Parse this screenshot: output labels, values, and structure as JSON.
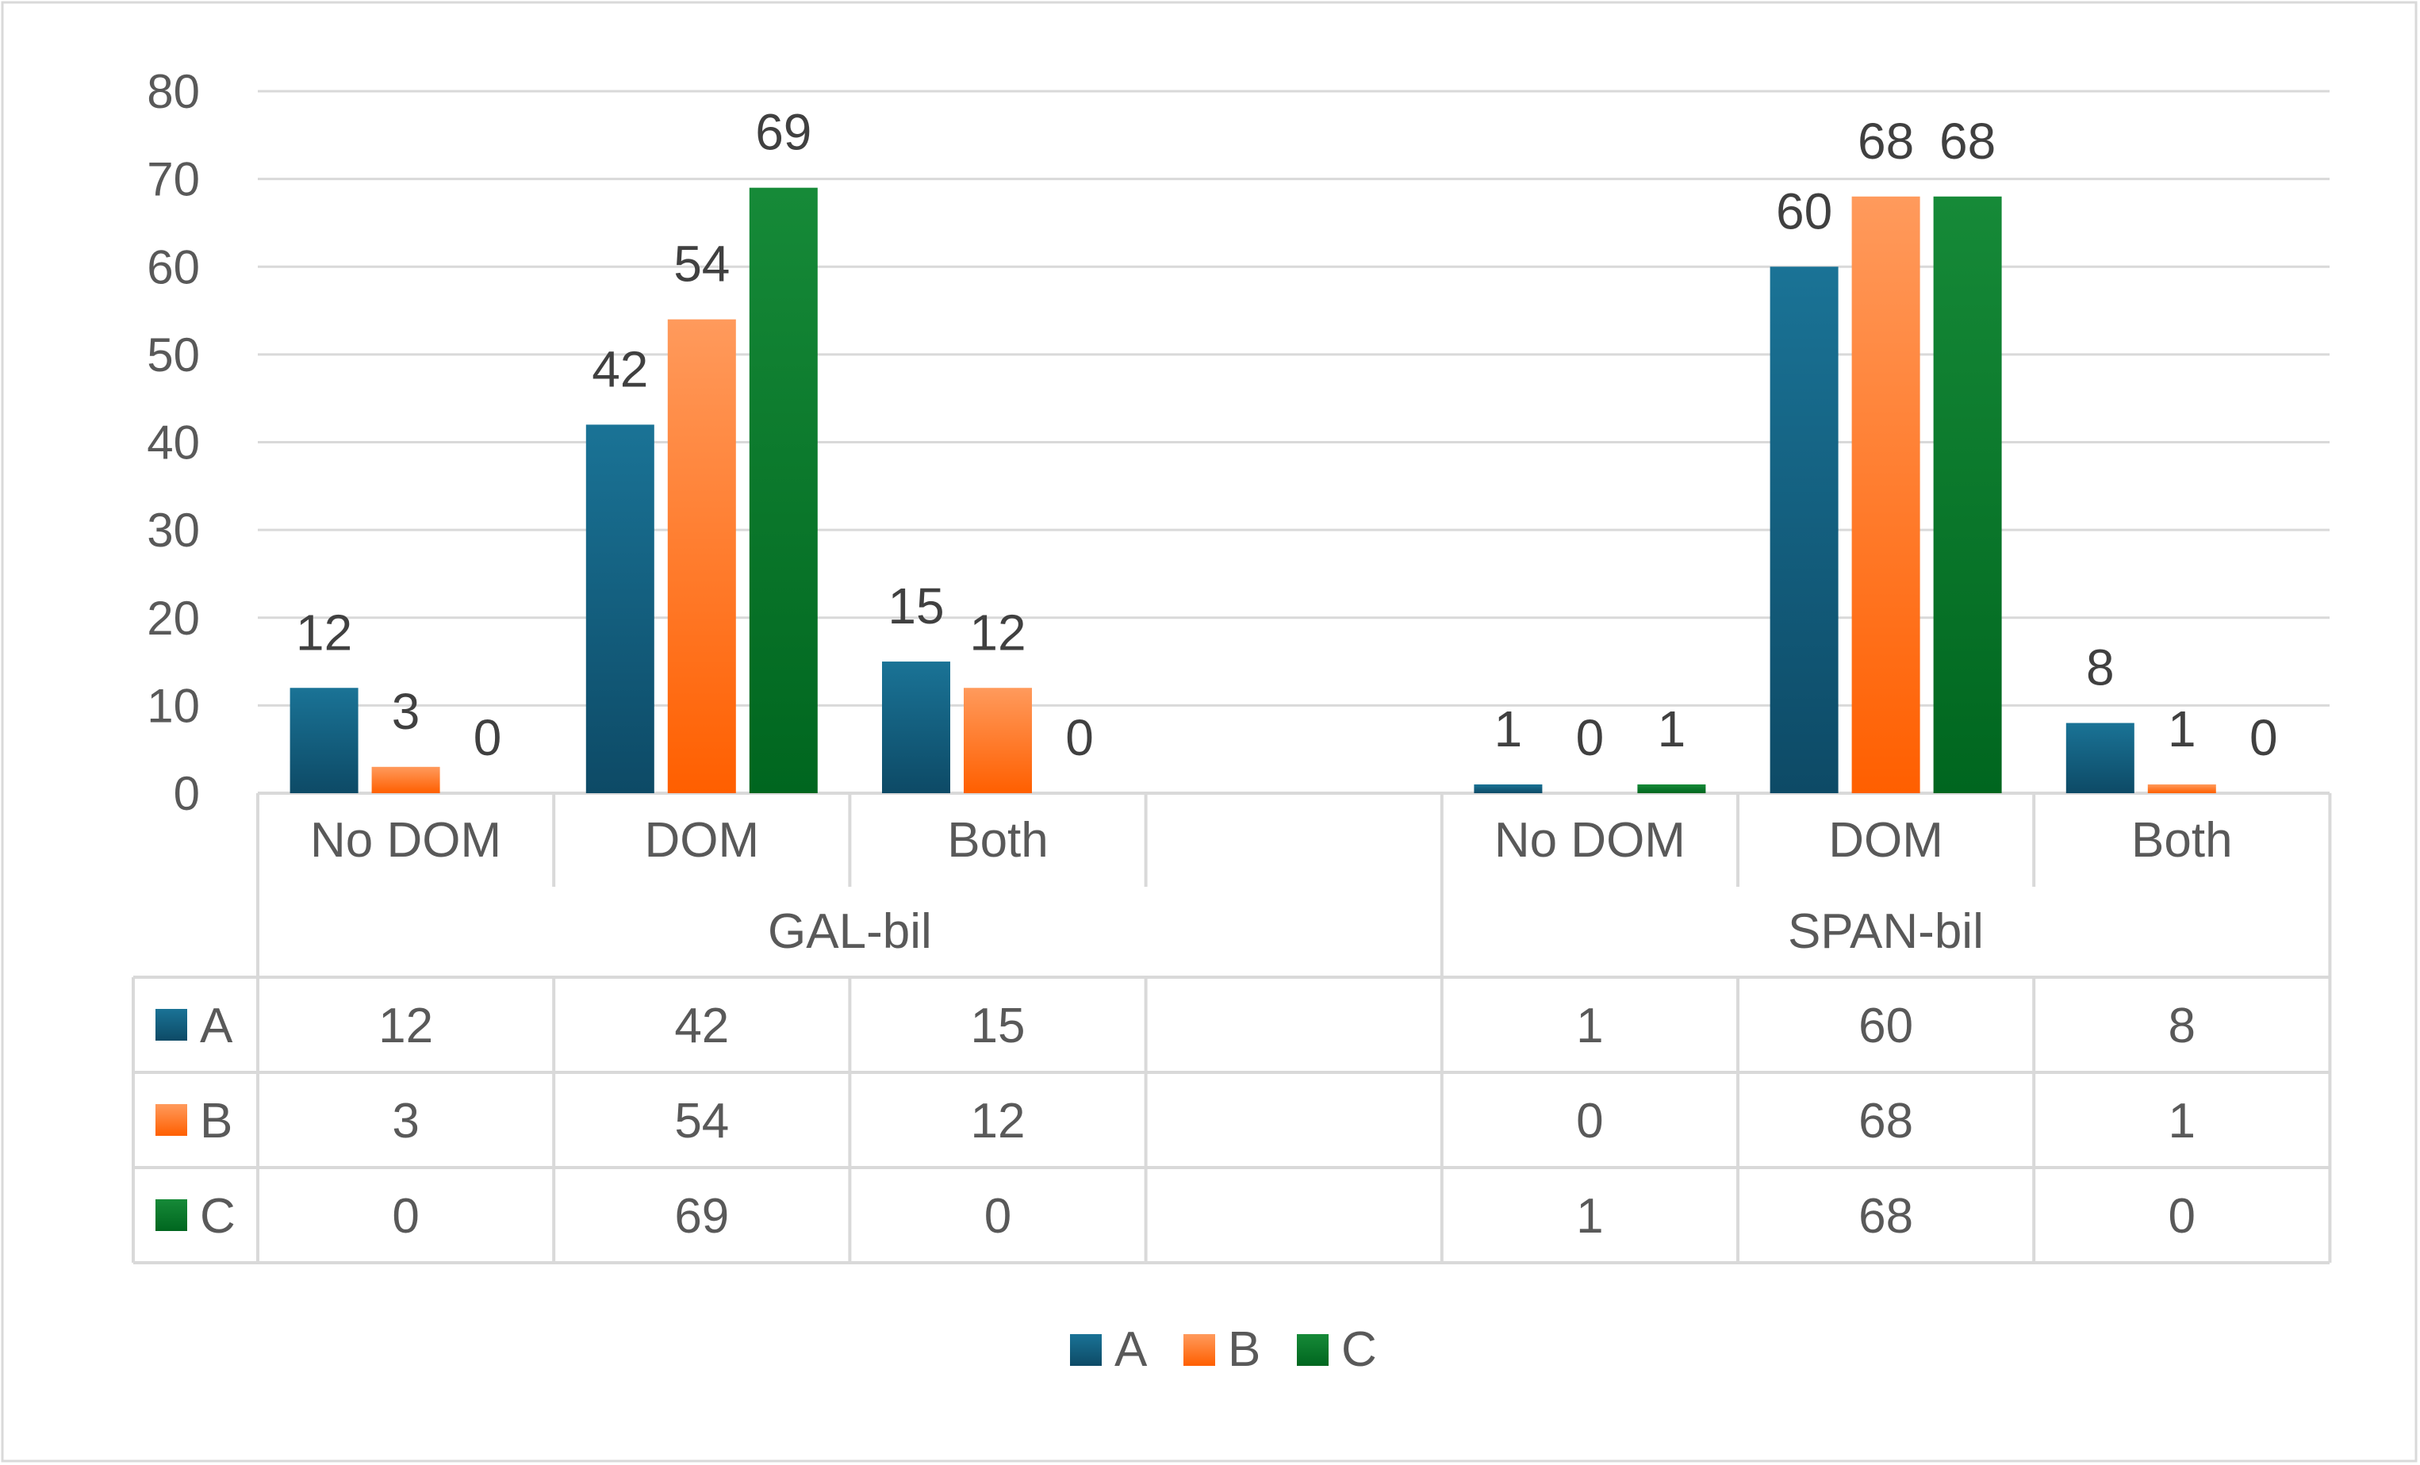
{
  "chart_data": {
    "type": "bar",
    "groups": [
      {
        "name": "GAL-bil",
        "categories": [
          "No DOM",
          "DOM",
          "Both"
        ]
      },
      {
        "name": "SPAN-bil",
        "categories": [
          "No DOM",
          "DOM",
          "Both"
        ]
      }
    ],
    "series": [
      {
        "name": "A",
        "color": "#156082",
        "values": [
          12,
          42,
          15,
          1,
          60,
          8
        ]
      },
      {
        "name": "B",
        "color": "#FF7A2F",
        "values": [
          3,
          54,
          12,
          0,
          68,
          1
        ]
      },
      {
        "name": "C",
        "color": "#0E7A2F",
        "values": [
          0,
          69,
          0,
          1,
          68,
          0
        ]
      }
    ],
    "ylim": [
      0,
      80
    ],
    "yticks": [
      0,
      10,
      20,
      30,
      40,
      50,
      60,
      70,
      80
    ],
    "grid": true,
    "data_table": true,
    "legend_position": "bottom"
  }
}
